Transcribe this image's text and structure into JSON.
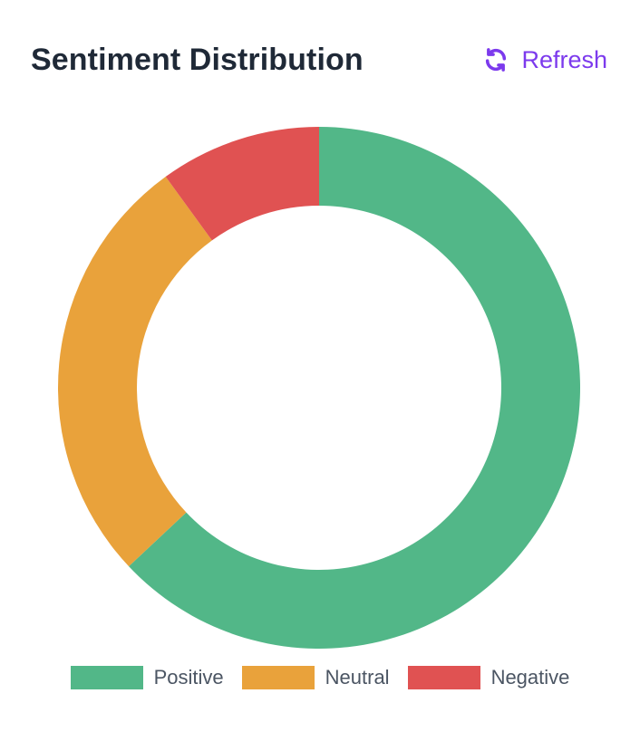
{
  "header": {
    "title": "Sentiment Distribution",
    "refresh_label": "Refresh",
    "refresh_icon": "sync-icon"
  },
  "colors": {
    "accent": "#7c3aed"
  },
  "chart_data": {
    "type": "pie",
    "variant": "doughnut",
    "title": "",
    "legend_position": "bottom",
    "categories": [
      "Positive",
      "Neutral",
      "Negative"
    ],
    "values": [
      63,
      27,
      10
    ],
    "colors": [
      "#52b788",
      "#e9a23b",
      "#e05252"
    ]
  }
}
